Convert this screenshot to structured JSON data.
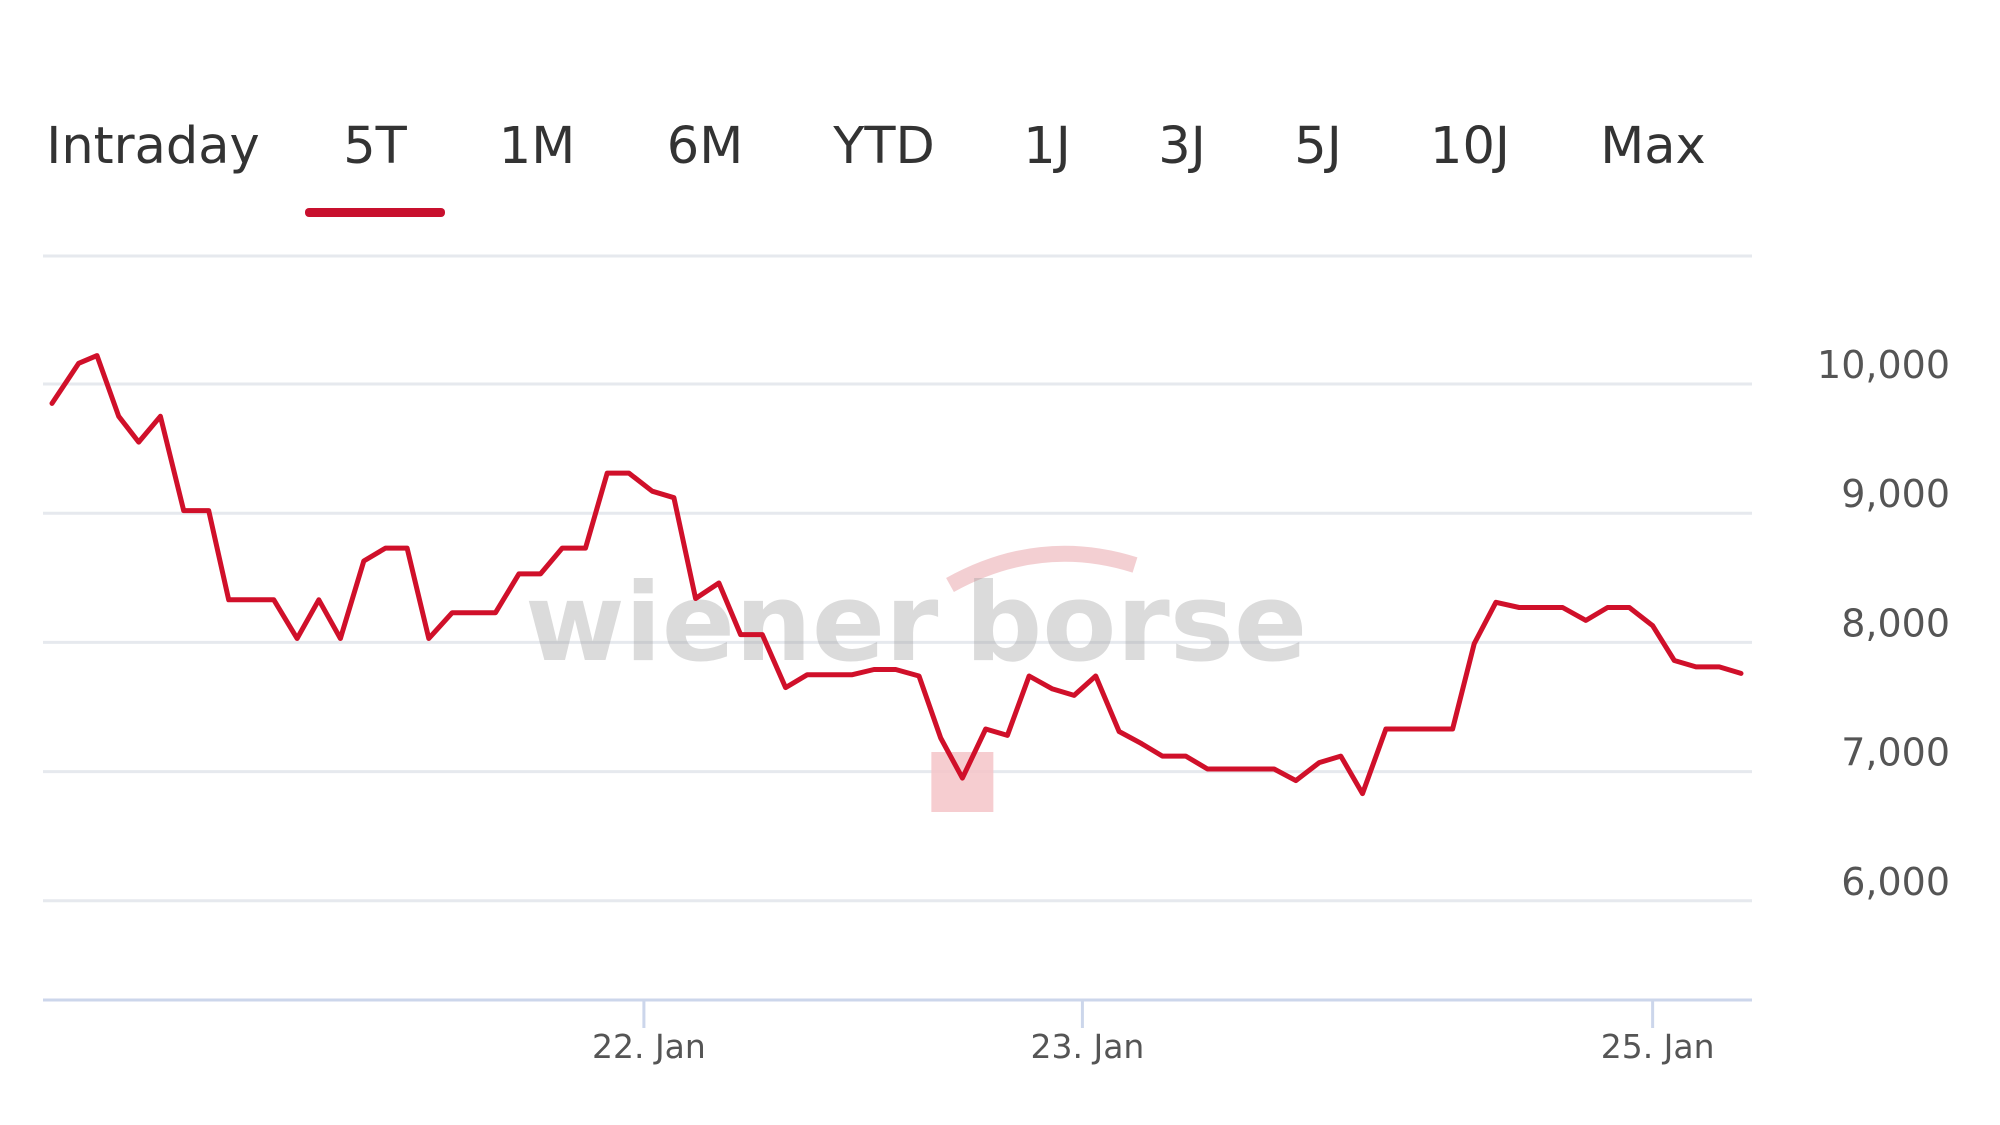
{
  "tabs": [
    {
      "label": "Intraday",
      "active": false
    },
    {
      "label": "5T",
      "active": true
    },
    {
      "label": "1M",
      "active": false
    },
    {
      "label": "6M",
      "active": false
    },
    {
      "label": "YTD",
      "active": false
    },
    {
      "label": "1J",
      "active": false
    },
    {
      "label": "3J",
      "active": false
    },
    {
      "label": "5J",
      "active": false
    },
    {
      "label": "10J",
      "active": false
    },
    {
      "label": "Max",
      "active": false
    }
  ],
  "watermark": {
    "left": "wiener",
    "right": "borse"
  },
  "colors": {
    "line": "#d0102a",
    "accent": "#c8102e",
    "grid": "#e6e9ee",
    "axis": "#ccd6eb",
    "tooltip_marker": "#f4c4c8"
  },
  "chart_data": {
    "type": "line",
    "title": "",
    "xlabel": "",
    "ylabel": "",
    "ylim": [
      5000,
      11000
    ],
    "yticks": [
      "6,000",
      "7,000",
      "8,000",
      "9,000",
      "10,000"
    ],
    "ytick_values": [
      6000,
      7000,
      8000,
      9000,
      10000
    ],
    "xtick_labels": [
      "22. Jan",
      "23. Jan",
      "25. Jan"
    ],
    "xtick_values": [
      35.5,
      61.8,
      96
    ],
    "grid": true,
    "legend": "none",
    "series": [
      {
        "name": "",
        "values": [
          {
            "x": 0,
            "y": 9850
          },
          {
            "x": 1.6,
            "y": 10160
          },
          {
            "x": 2.7,
            "y": 10220
          },
          {
            "x": 4,
            "y": 9750
          },
          {
            "x": 5.2,
            "y": 9550
          },
          {
            "x": 6.5,
            "y": 9750
          },
          {
            "x": 7.9,
            "y": 9020
          },
          {
            "x": 9.4,
            "y": 9020
          },
          {
            "x": 10.6,
            "y": 8330
          },
          {
            "x": 13.3,
            "y": 8330
          },
          {
            "x": 14.7,
            "y": 8030
          },
          {
            "x": 16,
            "y": 8330
          },
          {
            "x": 17.3,
            "y": 8030
          },
          {
            "x": 18.7,
            "y": 8630
          },
          {
            "x": 20,
            "y": 8730
          },
          {
            "x": 21.3,
            "y": 8730
          },
          {
            "x": 22.6,
            "y": 8030
          },
          {
            "x": 24,
            "y": 8230
          },
          {
            "x": 26.6,
            "y": 8230
          },
          {
            "x": 28,
            "y": 8530
          },
          {
            "x": 29.3,
            "y": 8530
          },
          {
            "x": 30.6,
            "y": 8730
          },
          {
            "x": 32,
            "y": 8730
          },
          {
            "x": 33.3,
            "y": 9310
          },
          {
            "x": 34.6,
            "y": 9310
          },
          {
            "x": 36,
            "y": 9170
          },
          {
            "x": 37.3,
            "y": 9120
          },
          {
            "x": 38.6,
            "y": 8340
          },
          {
            "x": 40,
            "y": 8460
          },
          {
            "x": 41.3,
            "y": 8060
          },
          {
            "x": 42.6,
            "y": 8060
          },
          {
            "x": 44,
            "y": 7650
          },
          {
            "x": 45.3,
            "y": 7750
          },
          {
            "x": 48,
            "y": 7750
          },
          {
            "x": 49.3,
            "y": 7790
          },
          {
            "x": 50.6,
            "y": 7790
          },
          {
            "x": 52,
            "y": 7740
          },
          {
            "x": 53.3,
            "y": 7260
          },
          {
            "x": 54.6,
            "y": 6950
          },
          {
            "x": 56,
            "y": 7330
          },
          {
            "x": 57.3,
            "y": 7280
          },
          {
            "x": 58.6,
            "y": 7740
          },
          {
            "x": 60,
            "y": 7640
          },
          {
            "x": 61.3,
            "y": 7590
          },
          {
            "x": 62.6,
            "y": 7740
          },
          {
            "x": 64,
            "y": 7310
          },
          {
            "x": 65.3,
            "y": 7220
          },
          {
            "x": 66.6,
            "y": 7120
          },
          {
            "x": 68,
            "y": 7120
          },
          {
            "x": 69.3,
            "y": 7020
          },
          {
            "x": 72,
            "y": 7020
          },
          {
            "x": 73.3,
            "y": 7020
          },
          {
            "x": 74.6,
            "y": 6930
          },
          {
            "x": 76,
            "y": 7070
          },
          {
            "x": 77.3,
            "y": 7120
          },
          {
            "x": 78.6,
            "y": 6830
          },
          {
            "x": 80,
            "y": 7330
          },
          {
            "x": 82.6,
            "y": 7330
          },
          {
            "x": 84,
            "y": 7330
          },
          {
            "x": 85.3,
            "y": 7990
          },
          {
            "x": 86.6,
            "y": 8310
          },
          {
            "x": 88,
            "y": 8270
          },
          {
            "x": 90.6,
            "y": 8270
          },
          {
            "x": 92,
            "y": 8170
          },
          {
            "x": 93.3,
            "y": 8270
          },
          {
            "x": 94.6,
            "y": 8270
          },
          {
            "x": 96,
            "y": 8130
          },
          {
            "x": 97.3,
            "y": 7860
          },
          {
            "x": 98.6,
            "y": 7810
          },
          {
            "x": 100,
            "y": 7810
          },
          {
            "x": 101.3,
            "y": 7760
          }
        ]
      }
    ]
  }
}
